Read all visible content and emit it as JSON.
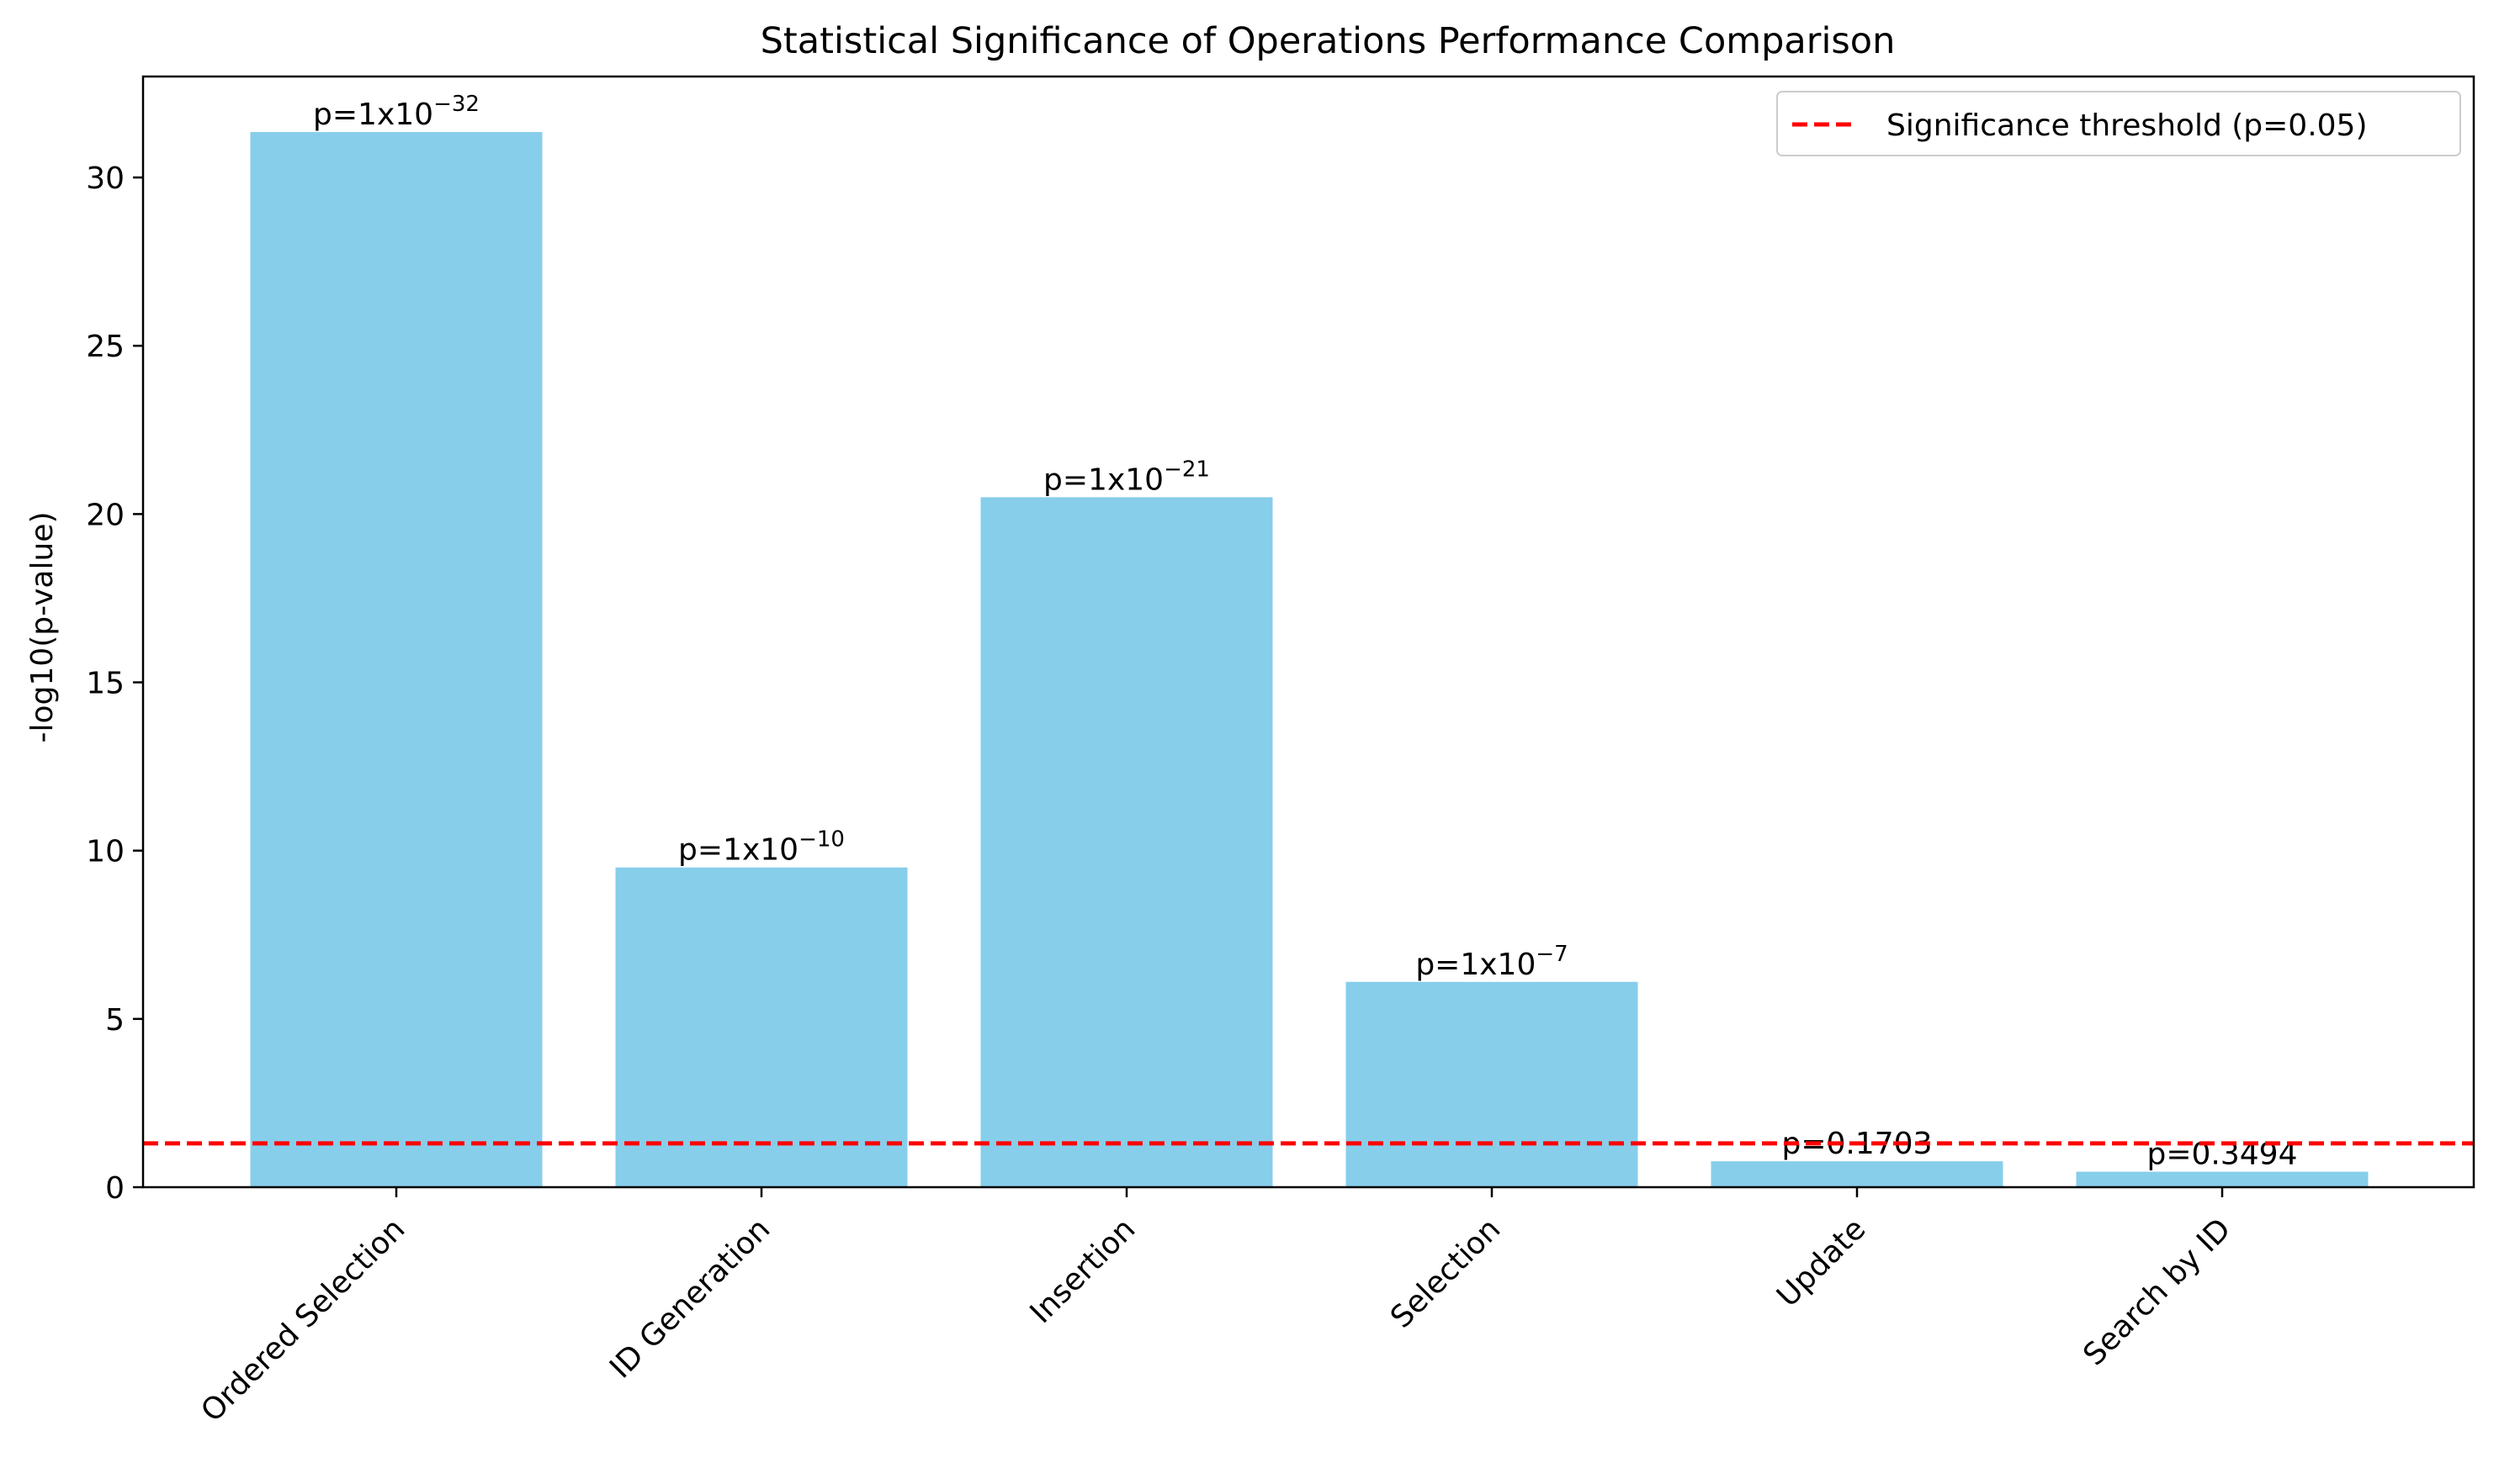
{
  "chart_data": {
    "type": "bar",
    "title": "Statistical Significance of Operations Performance Comparison",
    "xlabel": "",
    "ylabel": "-log10(p-value)",
    "ylim": [
      0,
      33
    ],
    "yticks": [
      0,
      5,
      10,
      15,
      20,
      25,
      30
    ],
    "categories": [
      "Ordered Selection",
      "ID Generation",
      "Insertion",
      "Selection",
      "Update",
      "Search by ID"
    ],
    "values": [
      31.35,
      9.5,
      20.5,
      6.1,
      0.77,
      0.46
    ],
    "bar_labels": [
      {
        "base": "p=1x10",
        "exponent": "−32"
      },
      {
        "base": "p=1x10",
        "exponent": "−10"
      },
      {
        "base": "p=1x10",
        "exponent": "−21"
      },
      {
        "base": "p=1x10",
        "exponent": "−7"
      },
      {
        "base": "p=0.1703",
        "exponent": ""
      },
      {
        "base": "p=0.3494",
        "exponent": ""
      }
    ],
    "bar_color": "#87ceeb",
    "threshold": {
      "value": 1.301,
      "color": "#ff0000",
      "label": "Significance threshold (p=0.05)"
    },
    "legend_position": "top-right",
    "grid": false
  }
}
